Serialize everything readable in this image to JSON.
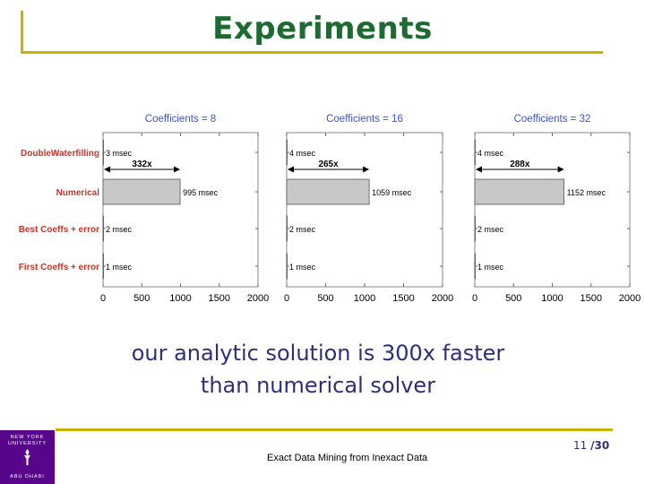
{
  "slide": {
    "title": "Experiments",
    "caption_line1": "our analytic solution is 300x faster",
    "caption_line2": "than numerical solver",
    "footer_text": "Exact Data Mining from Inexact Data",
    "page_current": "11",
    "page_sep": "/",
    "page_total": "30"
  },
  "logo": {
    "line1": "NEW YORK",
    "line2": "UNIVERSITY",
    "line3": "ABU DHABI",
    "icon": "torch-icon",
    "color": "#57068c"
  },
  "colors": {
    "title": "#1d6b30",
    "accent": "#c8b400",
    "caption": "#2e2e7a",
    "panel_title": "#3a55c8",
    "row_label": "#c0392b",
    "bar_fill": "#c8c8c8"
  },
  "chart_data": [
    {
      "type": "bar",
      "orientation": "horizontal",
      "title": "Coefficients = 8",
      "categories": [
        "DoubleWaterfilling",
        "Numerical",
        "Best Coeffs + error",
        "First Coeffs + error"
      ],
      "values": [
        3,
        995,
        2,
        1
      ],
      "value_labels": [
        "3 msec",
        "995 msec",
        "2 msec",
        "1 msec"
      ],
      "speedup_label": "332x",
      "xlim": [
        0,
        2000
      ],
      "xticks": [
        0,
        500,
        1000,
        1500,
        2000
      ]
    },
    {
      "type": "bar",
      "orientation": "horizontal",
      "title": "Coefficients = 16",
      "categories": [
        "DoubleWaterfilling",
        "Numerical",
        "Best Coeffs + error",
        "First Coeffs + error"
      ],
      "values": [
        4,
        1059,
        2,
        1
      ],
      "value_labels": [
        "4 msec",
        "1059 msec",
        "2 msec",
        "1 msec"
      ],
      "speedup_label": "265x",
      "xlim": [
        0,
        2000
      ],
      "xticks": [
        0,
        500,
        1000,
        1500,
        2000
      ]
    },
    {
      "type": "bar",
      "orientation": "horizontal",
      "title": "Coefficients = 32",
      "categories": [
        "DoubleWaterfilling",
        "Numerical",
        "Best Coeffs + error",
        "First Coeffs + error"
      ],
      "values": [
        4,
        1152,
        2,
        1
      ],
      "value_labels": [
        "4 msec",
        "1152 msec",
        "2 msec",
        "1 msec"
      ],
      "speedup_label": "288x",
      "xlim": [
        0,
        2000
      ],
      "xticks": [
        0,
        500,
        1000,
        1500,
        2000
      ]
    }
  ]
}
